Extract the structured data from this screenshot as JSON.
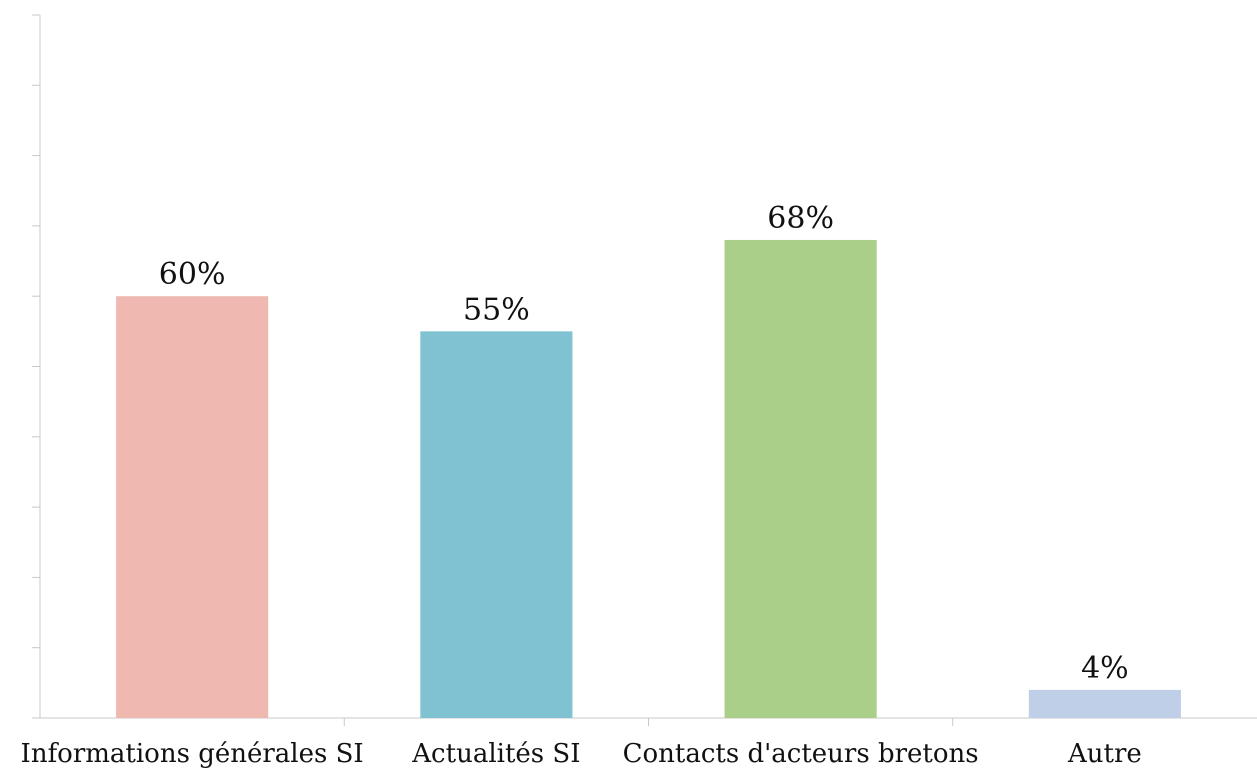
{
  "chart_data": {
    "type": "bar",
    "categories": [
      "Informations générales SI",
      "Actualités SI",
      "Contacts d'acteurs bretons",
      "Autre"
    ],
    "values": [
      60,
      55,
      68,
      4
    ],
    "data_labels": [
      "60%",
      "55%",
      "68%",
      "4%"
    ],
    "colors": [
      "#efb8b0",
      "#80c2d2",
      "#a9cf88",
      "#bfcfe7"
    ],
    "ylim": [
      0,
      100
    ],
    "y_tick_step": 10,
    "y_tick_labels_shown": false,
    "grid": false,
    "legend": "none"
  }
}
